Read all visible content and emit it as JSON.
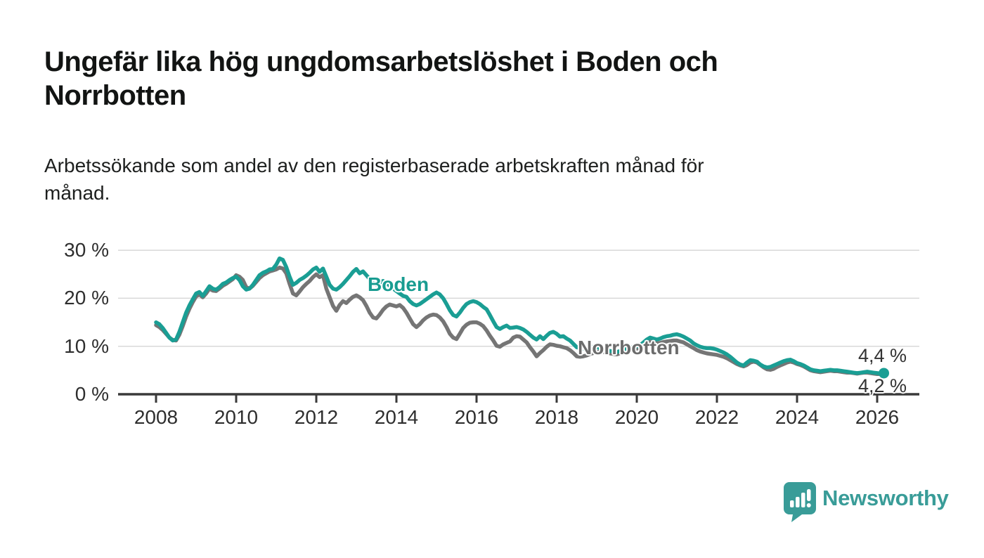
{
  "header": {
    "title_lines": [
      "Ungefär lika hög ungdomsarbetslöshet i Boden och",
      "Norrbotten"
    ],
    "subtitle_lines": [
      "Arbetssökande som andel av den registerbaserade arbetskraften månad för",
      "månad."
    ]
  },
  "chart_data": {
    "type": "line",
    "unit": "%",
    "x_start_year": 2008,
    "x_resolution": "monthly",
    "ylim": [
      0,
      30
    ],
    "grid": "horizontal",
    "y_ticks": [
      {
        "value": 0,
        "label": "0 %"
      },
      {
        "value": 10,
        "label": "10 %"
      },
      {
        "value": 20,
        "label": "20 %"
      },
      {
        "value": 30,
        "label": "30 %"
      }
    ],
    "x_ticks": [
      "2008",
      "2010",
      "2012",
      "2014",
      "2016",
      "2018",
      "2020",
      "2022",
      "2024",
      "2026"
    ],
    "series": [
      {
        "name": "Boden",
        "color": "#1A9E94",
        "label_color": "#189C91",
        "values": [
          15.0,
          14.6,
          13.8,
          12.8,
          11.8,
          11.2,
          11.4,
          13.0,
          15.0,
          17.0,
          18.5,
          19.8,
          21.0,
          21.3,
          20.5,
          21.5,
          22.5,
          22.0,
          21.8,
          22.3,
          23.0,
          23.3,
          23.8,
          24.2,
          24.5,
          23.8,
          22.5,
          21.8,
          22.0,
          22.8,
          23.8,
          24.8,
          25.3,
          25.6,
          26.0,
          26.1,
          27.0,
          28.3,
          28.0,
          26.5,
          24.5,
          22.8,
          23.2,
          23.8,
          24.2,
          24.7,
          25.3,
          26.0,
          26.4,
          25.5,
          26.2,
          24.5,
          22.8,
          22.0,
          21.8,
          22.3,
          23.0,
          23.8,
          24.6,
          25.5,
          26.1,
          25.2,
          25.6,
          24.8,
          24.0,
          23.2,
          22.8,
          23.2,
          23.6,
          23.2,
          22.6,
          22.0,
          21.5,
          21.0,
          20.5,
          20.3,
          19.4,
          18.8,
          18.5,
          18.8,
          19.3,
          19.8,
          20.3,
          20.8,
          21.2,
          20.8,
          20.0,
          18.8,
          17.5,
          16.5,
          16.2,
          17.0,
          18.0,
          18.8,
          19.2,
          19.4,
          19.2,
          18.8,
          18.2,
          17.7,
          16.5,
          15.2,
          14.0,
          13.6,
          14.0,
          14.3,
          13.8,
          13.9,
          14.0,
          13.8,
          13.5,
          13.0,
          12.4,
          11.8,
          11.4,
          12.1,
          11.5,
          12.2,
          12.8,
          13.0,
          12.6,
          12.0,
          12.1,
          11.6,
          11.2,
          10.5,
          9.8,
          9.6,
          9.5,
          9.6,
          9.8,
          9.9,
          9.8,
          9.6,
          9.4,
          9.2,
          9.0,
          8.9,
          8.8,
          9.0,
          9.2,
          9.5,
          9.7,
          9.9,
          10.0,
          10.2,
          10.8,
          11.4,
          11.8,
          11.6,
          11.4,
          11.6,
          11.9,
          12.1,
          12.2,
          12.4,
          12.5,
          12.3,
          12.0,
          11.6,
          11.2,
          10.6,
          10.2,
          9.9,
          9.7,
          9.6,
          9.6,
          9.5,
          9.3,
          9.0,
          8.7,
          8.3,
          7.8,
          7.2,
          6.6,
          6.2,
          6.0,
          6.6,
          7.1,
          7.0,
          6.8,
          6.2,
          5.8,
          5.6,
          5.7,
          6.0,
          6.3,
          6.6,
          6.9,
          7.1,
          7.2,
          6.9,
          6.5,
          6.3,
          6.0,
          5.6,
          5.2,
          5.0,
          4.9,
          4.8,
          4.9,
          5.0,
          5.1,
          5.0,
          5.0,
          4.9,
          4.8,
          4.7,
          4.6,
          4.5,
          4.4,
          4.5,
          4.6,
          4.7,
          4.6,
          4.5,
          4.4,
          4.3,
          4.4
        ]
      },
      {
        "name": "Norrbotten",
        "color": "#757575",
        "label_color": "#6C6C6C",
        "values": [
          14.4,
          14.0,
          13.4,
          12.6,
          11.8,
          11.3,
          11.2,
          12.4,
          14.2,
          16.2,
          17.8,
          19.2,
          20.4,
          20.8,
          20.2,
          21.0,
          22.0,
          21.6,
          21.5,
          22.0,
          22.6,
          23.0,
          23.5,
          24.0,
          24.8,
          24.5,
          23.8,
          22.3,
          22.0,
          22.6,
          23.4,
          24.2,
          24.8,
          25.2,
          25.6,
          25.8,
          26.0,
          26.4,
          26.2,
          25.2,
          23.0,
          21.0,
          20.6,
          21.4,
          22.3,
          23.0,
          23.6,
          24.4,
          25.0,
          24.4,
          24.8,
          22.0,
          20.2,
          18.4,
          17.4,
          18.6,
          19.4,
          19.0,
          19.7,
          20.3,
          20.6,
          20.2,
          19.6,
          18.4,
          17.0,
          16.0,
          15.8,
          16.6,
          17.6,
          18.3,
          18.7,
          18.5,
          18.3,
          18.6,
          18.0,
          17.0,
          15.8,
          14.6,
          14.0,
          14.6,
          15.4,
          16.0,
          16.4,
          16.6,
          16.5,
          16.0,
          15.2,
          14.0,
          12.6,
          11.8,
          11.5,
          12.6,
          13.8,
          14.5,
          14.9,
          15.0,
          15.0,
          14.7,
          14.2,
          13.3,
          12.2,
          11.2,
          10.1,
          9.9,
          10.4,
          10.7,
          11.0,
          11.8,
          12.1,
          12.0,
          11.4,
          10.8,
          9.8,
          8.9,
          7.9,
          8.6,
          9.2,
          9.9,
          10.4,
          10.3,
          10.1,
          10.0,
          9.8,
          9.6,
          9.2,
          8.6,
          7.9,
          7.8,
          7.9,
          8.1,
          8.4,
          8.6,
          8.8,
          8.9,
          8.8,
          8.7,
          8.5,
          8.4,
          8.3,
          8.5,
          8.7,
          8.9,
          9.1,
          9.3,
          9.5,
          9.7,
          10.2,
          10.7,
          11.0,
          10.8,
          10.6,
          10.7,
          10.9,
          11.0,
          11.1,
          11.2,
          11.2,
          11.0,
          10.8,
          10.4,
          10.0,
          9.6,
          9.2,
          8.9,
          8.7,
          8.5,
          8.4,
          8.3,
          8.2,
          8.0,
          7.8,
          7.5,
          7.1,
          6.7,
          6.3,
          6.0,
          5.8,
          6.1,
          6.6,
          6.8,
          6.6,
          6.1,
          5.6,
          5.2,
          5.1,
          5.3,
          5.7,
          6.0,
          6.3,
          6.6,
          6.8,
          6.6,
          6.3,
          6.1,
          5.8,
          5.4,
          5.0,
          4.8,
          4.7,
          4.6,
          4.7,
          4.8,
          4.9,
          4.8,
          4.8,
          4.7,
          4.6,
          4.5,
          4.5,
          4.4,
          4.3,
          4.4,
          4.5,
          4.5,
          4.4,
          4.3,
          4.2,
          4.2,
          4.2
        ]
      }
    ],
    "end_labels": [
      {
        "series": "Boden",
        "text": "4,4 %"
      },
      {
        "series": "Norrbotten",
        "text": "4,2 %"
      }
    ],
    "axis_color": "#3a3a3a",
    "grid_color": "#d8d8d8"
  },
  "branding": {
    "logo_text": "Newsworthy",
    "logo_color": "#399C98"
  }
}
